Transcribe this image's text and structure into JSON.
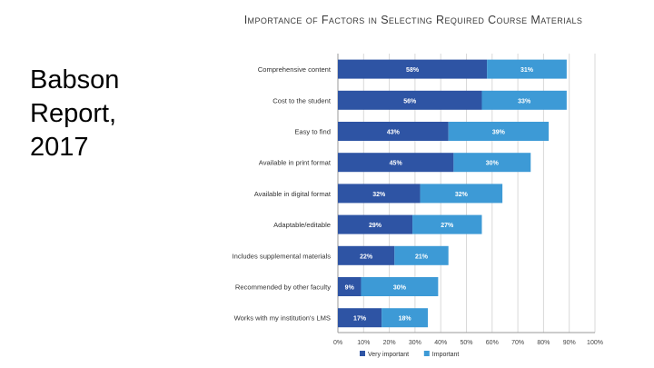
{
  "slide": {
    "label_lines": [
      "Babson",
      "Report,",
      "2017"
    ]
  },
  "chart_data": {
    "type": "bar",
    "orientation": "horizontal",
    "stacked": true,
    "title": "Importance of Factors in Selecting Required Course Materials",
    "categories": [
      "Comprehensive content",
      "Cost to the student",
      "Easy to find",
      "Available in print format",
      "Available in digital format",
      "Adaptable/editable",
      "Includes supplemental materials",
      "Recommended by other faculty",
      "Works with my institution's LMS"
    ],
    "series": [
      {
        "name": "Very important",
        "color": "#2e54a4",
        "values": [
          58,
          56,
          43,
          45,
          32,
          29,
          22,
          9,
          17
        ]
      },
      {
        "name": "Important",
        "color": "#3d9ad6",
        "values": [
          31,
          33,
          39,
          30,
          32,
          27,
          21,
          30,
          18
        ]
      }
    ],
    "value_suffix": "%",
    "xlim": [
      0,
      100
    ],
    "xticks": [
      0,
      10,
      20,
      30,
      40,
      50,
      60,
      70,
      80,
      90,
      100
    ],
    "xtick_labels": [
      "0%",
      "10%",
      "20%",
      "30%",
      "40%",
      "50%",
      "60%",
      "70%",
      "80%",
      "90%",
      "100%"
    ],
    "grid": true,
    "legend_position": "bottom"
  }
}
